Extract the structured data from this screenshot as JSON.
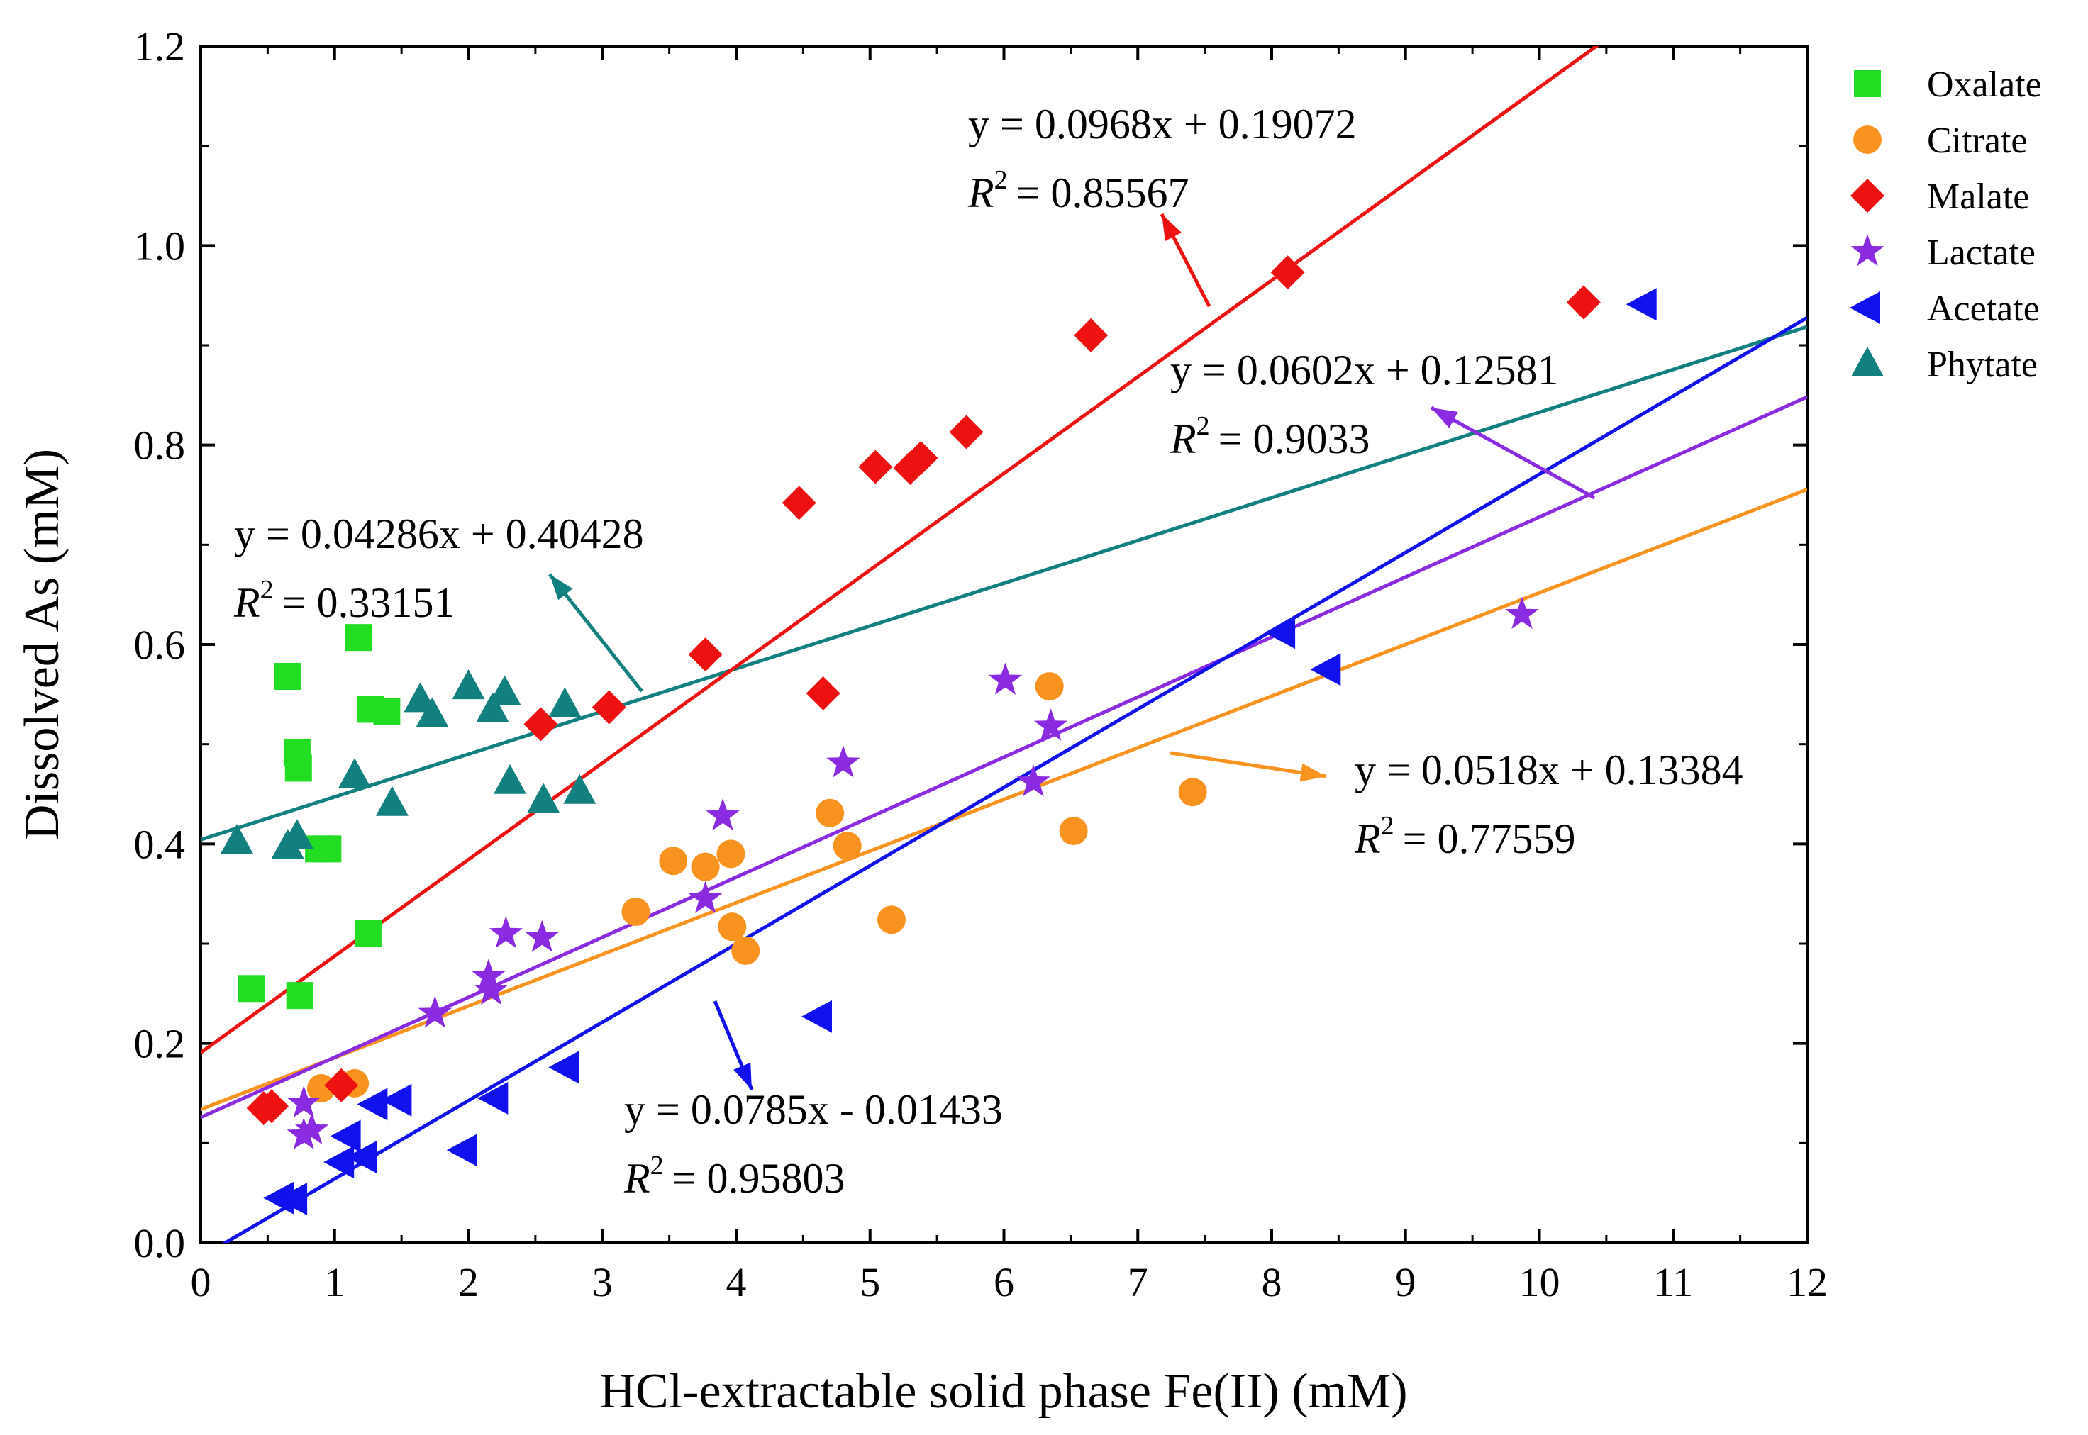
{
  "chart_data": {
    "type": "scatter",
    "title": "",
    "xlabel": "HCl-extractable solid phase Fe(II) (mM)",
    "ylabel": "Dissolved As (mM)",
    "xlim": [
      0,
      12
    ],
    "ylim": [
      0.0,
      1.2
    ],
    "x_ticks": [
      "0",
      "1",
      "2",
      "3",
      "4",
      "5",
      "6",
      "7",
      "8",
      "9",
      "10",
      "11",
      "12"
    ],
    "y_ticks": [
      "0.0",
      "0.2",
      "0.4",
      "0.6",
      "0.8",
      "1.0",
      "1.2"
    ],
    "legend_position": "top-right, outside plot",
    "series": [
      {
        "name": "Oxalate",
        "color": "#22dd22",
        "marker": "square",
        "x": [
          0.38,
          0.65,
          0.72,
          0.73,
          0.74,
          0.88,
          0.95,
          1.18,
          1.25,
          1.27,
          1.39
        ],
        "y": [
          0.255,
          0.568,
          0.492,
          0.476,
          0.248,
          0.395,
          0.395,
          0.607,
          0.31,
          0.535,
          0.533
        ],
        "fit": null
      },
      {
        "name": "Citrate",
        "color": "#f7931e",
        "marker": "circle",
        "x": [
          0.9,
          1.15,
          3.25,
          3.53,
          3.77,
          3.96,
          3.97,
          4.07,
          4.7,
          4.83,
          5.16,
          6.34,
          6.52,
          7.41
        ],
        "y": [
          0.155,
          0.16,
          0.332,
          0.383,
          0.377,
          0.39,
          0.317,
          0.293,
          0.431,
          0.398,
          0.324,
          0.558,
          0.413,
          0.452
        ],
        "fit": {
          "slope": 0.0518,
          "intercept": 0.13384,
          "equation": "y = 0.0518x + 0.13384",
          "r2_label": "R",
          "r2_value": "= 0.77559"
        }
      },
      {
        "name": "Malate",
        "color": "#ee1111",
        "marker": "diamond",
        "x": [
          0.47,
          0.53,
          1.05,
          2.54,
          3.05,
          3.77,
          4.47,
          4.65,
          5.04,
          5.3,
          5.38,
          5.72,
          6.65,
          8.12,
          10.33
        ],
        "y": [
          0.135,
          0.137,
          0.158,
          0.52,
          0.537,
          0.59,
          0.742,
          0.551,
          0.778,
          0.777,
          0.787,
          0.813,
          0.91,
          0.973,
          0.943
        ],
        "fit": {
          "slope": 0.0968,
          "intercept": 0.19072,
          "equation": "y = 0.0968x + 0.19072",
          "r2_label": "R",
          "r2_value": "= 0.85567"
        }
      },
      {
        "name": "Lactate",
        "color": "#8a2be2",
        "marker": "star",
        "x": [
          0.77,
          0.77,
          0.83,
          1.75,
          2.15,
          2.17,
          2.28,
          2.55,
          3.77,
          3.9,
          4.8,
          6.01,
          6.22,
          6.35,
          9.87
        ],
        "y": [
          0.14,
          0.108,
          0.113,
          0.23,
          0.267,
          0.253,
          0.31,
          0.306,
          0.345,
          0.428,
          0.481,
          0.564,
          0.462,
          0.518,
          0.63
        ],
        "fit": {
          "slope": 0.0602,
          "intercept": 0.12581,
          "equation": "y = 0.0602x + 0.12581",
          "r2_label": "R",
          "r2_value": "= 0.9033"
        }
      },
      {
        "name": "Acetate",
        "color": "#1111ee",
        "marker": "triangle-left",
        "x": [
          0.6,
          0.7,
          1.05,
          1.1,
          1.22,
          1.3,
          1.48,
          1.97,
          2.2,
          2.73,
          4.62,
          8.08,
          8.42,
          10.78
        ],
        "y": [
          0.045,
          0.044,
          0.081,
          0.107,
          0.086,
          0.139,
          0.143,
          0.093,
          0.145,
          0.176,
          0.227,
          0.612,
          0.575,
          0.941
        ],
        "fit": {
          "slope": 0.0785,
          "intercept": -0.01433,
          "equation": "y = 0.0785x - 0.01433",
          "r2_label": "R",
          "r2_value": "= 0.95803"
        }
      },
      {
        "name": "Phytate",
        "color": "#138080",
        "marker": "triangle-up",
        "x": [
          0.27,
          0.65,
          0.72,
          1.15,
          1.43,
          1.64,
          1.73,
          2.0,
          2.18,
          2.27,
          2.31,
          2.56,
          2.72,
          2.83
        ],
        "y": [
          0.403,
          0.398,
          0.408,
          0.469,
          0.441,
          0.545,
          0.53,
          0.558,
          0.535,
          0.552,
          0.463,
          0.444,
          0.54,
          0.453
        ],
        "fit": {
          "slope": 0.04286,
          "intercept": 0.40428,
          "equation": "y = 0.04286x + 0.40428",
          "r2_label": "R",
          "r2_value": "= 0.33151"
        }
      }
    ]
  }
}
